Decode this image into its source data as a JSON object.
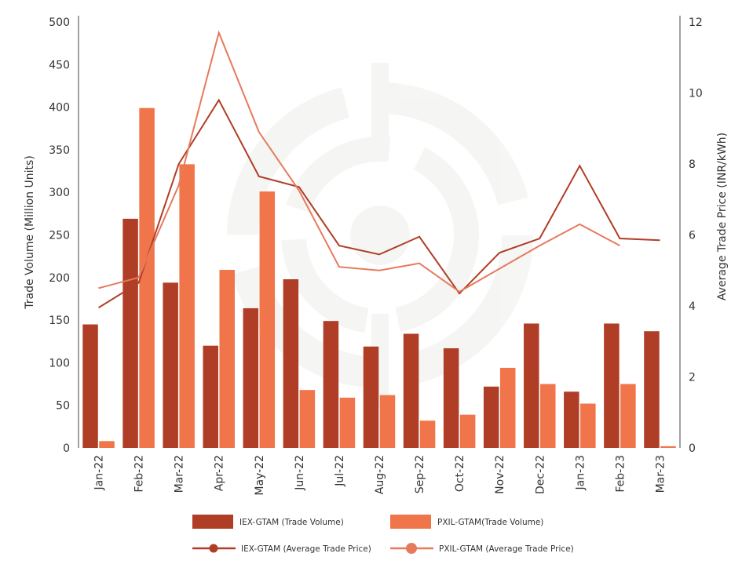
{
  "chart_data": {
    "type": "bar",
    "categories": [
      "Jan-22",
      "Feb-22",
      "Mar-22",
      "Apr-22",
      "May-22",
      "Jun-22",
      "Jul-22",
      "Aug-22",
      "Sep-22",
      "Oct-22",
      "Nov-22",
      "Dec-22",
      "Jan-23",
      "Feb-23",
      "Mar-23"
    ],
    "ylabel": "Trade Volume (Million Units)",
    "y2label": "Average Trade Price (INR/kWh)",
    "ylim": [
      0,
      500
    ],
    "y2lim": [
      0,
      12
    ],
    "yticks": [
      0,
      50,
      100,
      150,
      200,
      250,
      300,
      350,
      400,
      450,
      500
    ],
    "y2ticks": [
      0,
      2,
      4,
      6,
      8,
      10,
      12
    ],
    "grid": false,
    "legend_position": "bottom",
    "series": [
      {
        "name": "IEX-GTAM (Trade Volume)",
        "kind": "bar",
        "axis": "left",
        "color": "#B03E26",
        "values": [
          145,
          269,
          194,
          120,
          164,
          198,
          149,
          119,
          134,
          117,
          72,
          146,
          66,
          146,
          137
        ]
      },
      {
        "name": "PXIL-GTAM(Trade Volume)",
        "kind": "bar",
        "axis": "left",
        "color": "#F0754A",
        "values": [
          8,
          399,
          333,
          209,
          301,
          68,
          59,
          62,
          32,
          39,
          94,
          75,
          52,
          75,
          2
        ]
      },
      {
        "name": "IEX-GTAM (Average Trade Price)",
        "kind": "line",
        "axis": "right",
        "color": "#B03E26",
        "values": [
          3.95,
          4.65,
          8.0,
          9.8,
          7.65,
          7.35,
          5.7,
          5.45,
          5.95,
          4.35,
          5.5,
          5.9,
          7.95,
          5.9,
          5.85
        ]
      },
      {
        "name": "PXIL-GTAM (Average Trade Price)",
        "kind": "line",
        "axis": "right",
        "color": "#E67A5D",
        "values": [
          4.5,
          4.8,
          7.4,
          11.7,
          8.9,
          7.25,
          5.1,
          5.0,
          5.2,
          4.4,
          5.05,
          5.7,
          6.3,
          5.7,
          null
        ]
      }
    ]
  }
}
